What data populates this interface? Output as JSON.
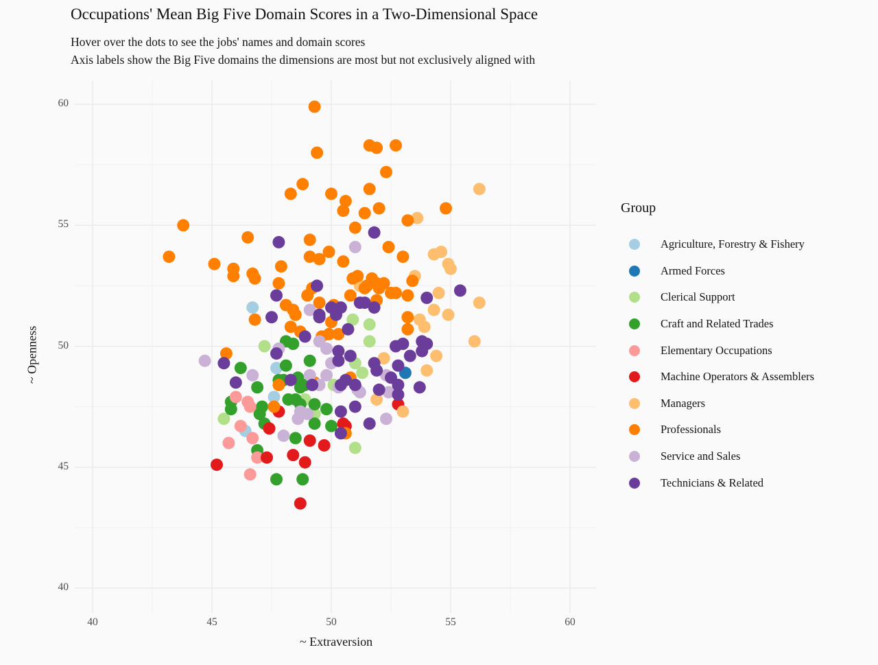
{
  "title": "Occupations' Mean Big Five Domain Scores in a Two-Dimensional Space",
  "subtitle_line1": "Hover over the dots to see the jobs' names and domain scores",
  "subtitle_line2": "Axis labels show the Big Five domains the dimensions are most but not exclusively aligned with",
  "chart_data": {
    "type": "scatter",
    "title": "Occupations' Mean Big Five Domain Scores in a Two-Dimensional Space",
    "xlabel": "~ Extraversion",
    "ylabel": "~ Openness",
    "xlim": [
      39.3,
      61.1
    ],
    "ylim": [
      39.0,
      61.0
    ],
    "xticks": [
      40,
      45,
      50,
      55,
      60
    ],
    "yticks": [
      40,
      45,
      50,
      55,
      60
    ],
    "minor_xticks": [
      42.5,
      47.5,
      52.5,
      57.5
    ],
    "minor_yticks": [
      42.5,
      47.5,
      52.5,
      57.5
    ],
    "grid": true,
    "legend_title": "Group",
    "legend_position": "right",
    "point_radius_px": 9,
    "groups": [
      {
        "name": "Agriculture, Forestry & Fishery",
        "color": "#a6cee3",
        "points": [
          [
            46.7,
            51.6
          ],
          [
            47.7,
            49.1
          ],
          [
            47.6,
            47.9
          ],
          [
            46.4,
            46.5
          ]
        ]
      },
      {
        "name": "Armed Forces",
        "color": "#1f78b4",
        "points": [
          [
            53.1,
            48.9
          ]
        ]
      },
      {
        "name": "Clerical Support",
        "color": "#b2df8a",
        "points": [
          [
            47.2,
            50.0
          ],
          [
            50.9,
            51.1
          ],
          [
            51.6,
            50.9
          ],
          [
            51.6,
            50.2
          ],
          [
            51.0,
            49.3
          ],
          [
            51.3,
            48.9
          ],
          [
            50.1,
            48.4
          ],
          [
            45.5,
            47.0
          ],
          [
            48.9,
            47.8
          ],
          [
            49.3,
            47.2
          ],
          [
            51.0,
            45.8
          ]
        ]
      },
      {
        "name": "Craft and Related Trades",
        "color": "#33a02c",
        "points": [
          [
            48.4,
            50.1
          ],
          [
            48.1,
            50.2
          ],
          [
            46.2,
            49.1
          ],
          [
            48.1,
            49.2
          ],
          [
            49.1,
            49.4
          ],
          [
            48.6,
            48.7
          ],
          [
            47.8,
            48.6
          ],
          [
            48.0,
            48.6
          ],
          [
            46.9,
            48.3
          ],
          [
            48.7,
            48.3
          ],
          [
            48.9,
            48.4
          ],
          [
            45.8,
            47.7
          ],
          [
            45.8,
            47.4
          ],
          [
            47.1,
            47.5
          ],
          [
            48.2,
            47.8
          ],
          [
            48.5,
            47.8
          ],
          [
            48.7,
            47.6
          ],
          [
            49.3,
            47.6
          ],
          [
            47.2,
            46.8
          ],
          [
            47.0,
            47.2
          ],
          [
            49.3,
            46.8
          ],
          [
            49.8,
            47.4
          ],
          [
            50.0,
            46.7
          ],
          [
            48.5,
            46.2
          ],
          [
            46.9,
            45.7
          ],
          [
            47.7,
            44.5
          ],
          [
            48.8,
            44.5
          ]
        ]
      },
      {
        "name": "Elementary Occupations",
        "color": "#fb9a99",
        "points": [
          [
            46.0,
            47.9
          ],
          [
            46.5,
            47.7
          ],
          [
            46.6,
            47.5
          ],
          [
            46.2,
            46.7
          ],
          [
            46.7,
            46.2
          ],
          [
            45.7,
            46.0
          ],
          [
            46.9,
            45.4
          ],
          [
            46.6,
            44.7
          ]
        ]
      },
      {
        "name": "Machine Operators & Assemblers",
        "color": "#e31a1c",
        "points": [
          [
            47.8,
            47.3
          ],
          [
            47.4,
            46.6
          ],
          [
            47.3,
            45.4
          ],
          [
            45.2,
            45.1
          ],
          [
            48.4,
            45.5
          ],
          [
            48.9,
            45.2
          ],
          [
            49.1,
            46.1
          ],
          [
            49.7,
            45.9
          ],
          [
            50.5,
            46.8
          ],
          [
            50.6,
            46.7
          ],
          [
            52.8,
            47.6
          ],
          [
            48.7,
            43.5
          ]
        ]
      },
      {
        "name": "Managers",
        "color": "#fdbf6f",
        "points": [
          [
            56.2,
            56.5
          ],
          [
            53.6,
            55.3
          ],
          [
            54.3,
            53.8
          ],
          [
            54.6,
            53.9
          ],
          [
            54.9,
            53.4
          ],
          [
            55.0,
            53.2
          ],
          [
            53.5,
            52.9
          ],
          [
            51.2,
            52.5
          ],
          [
            54.5,
            52.2
          ],
          [
            56.2,
            51.8
          ],
          [
            54.3,
            51.5
          ],
          [
            54.9,
            51.3
          ],
          [
            53.7,
            51.1
          ],
          [
            53.9,
            50.8
          ],
          [
            56.0,
            50.2
          ],
          [
            54.4,
            49.6
          ],
          [
            52.2,
            49.5
          ],
          [
            54.0,
            49.0
          ],
          [
            51.9,
            47.8
          ],
          [
            53.0,
            47.3
          ]
        ]
      },
      {
        "name": "Professionals",
        "color": "#ff7f00",
        "points": [
          [
            49.3,
            59.9
          ],
          [
            49.4,
            58.0
          ],
          [
            51.6,
            58.3
          ],
          [
            51.9,
            58.2
          ],
          [
            52.7,
            58.3
          ],
          [
            52.3,
            57.2
          ],
          [
            51.6,
            56.5
          ],
          [
            48.8,
            56.7
          ],
          [
            48.3,
            56.3
          ],
          [
            50.0,
            56.3
          ],
          [
            50.6,
            56.0
          ],
          [
            50.5,
            55.6
          ],
          [
            51.4,
            55.5
          ],
          [
            52.0,
            55.7
          ],
          [
            54.8,
            55.7
          ],
          [
            43.8,
            55.0
          ],
          [
            53.2,
            55.2
          ],
          [
            51.0,
            54.9
          ],
          [
            46.5,
            54.5
          ],
          [
            49.1,
            54.4
          ],
          [
            52.4,
            54.1
          ],
          [
            43.2,
            53.7
          ],
          [
            49.9,
            53.9
          ],
          [
            45.1,
            53.4
          ],
          [
            45.9,
            53.2
          ],
          [
            46.7,
            53.0
          ],
          [
            47.9,
            53.3
          ],
          [
            49.1,
            53.7
          ],
          [
            49.5,
            53.6
          ],
          [
            50.5,
            53.5
          ],
          [
            53.0,
            53.7
          ],
          [
            45.9,
            52.9
          ],
          [
            46.8,
            52.8
          ],
          [
            47.8,
            52.6
          ],
          [
            49.2,
            52.4
          ],
          [
            49.0,
            52.1
          ],
          [
            50.9,
            52.8
          ],
          [
            51.1,
            52.9
          ],
          [
            51.7,
            52.8
          ],
          [
            51.9,
            52.6
          ],
          [
            51.4,
            52.4
          ],
          [
            52.0,
            52.4
          ],
          [
            52.7,
            52.2
          ],
          [
            53.2,
            52.1
          ],
          [
            53.4,
            52.7
          ],
          [
            52.2,
            52.6
          ],
          [
            51.5,
            52.5
          ],
          [
            50.8,
            52.1
          ],
          [
            48.1,
            51.7
          ],
          [
            48.4,
            51.5
          ],
          [
            48.5,
            51.3
          ],
          [
            49.5,
            51.8
          ],
          [
            51.9,
            51.9
          ],
          [
            52.5,
            52.2
          ],
          [
            50.1,
            51.7
          ],
          [
            46.8,
            51.1
          ],
          [
            48.3,
            50.8
          ],
          [
            48.7,
            50.6
          ],
          [
            49.6,
            50.4
          ],
          [
            49.9,
            50.5
          ],
          [
            50.3,
            50.5
          ],
          [
            50.0,
            51.0
          ],
          [
            53.2,
            51.2
          ],
          [
            53.2,
            50.7
          ],
          [
            45.6,
            49.7
          ],
          [
            47.8,
            48.4
          ],
          [
            49.3,
            48.5
          ],
          [
            50.8,
            48.7
          ],
          [
            47.6,
            47.5
          ],
          [
            50.6,
            46.4
          ]
        ]
      },
      {
        "name": "Service and Sales",
        "color": "#cab2d6",
        "points": [
          [
            51.0,
            54.1
          ],
          [
            44.7,
            49.4
          ],
          [
            49.1,
            51.5
          ],
          [
            47.8,
            49.9
          ],
          [
            49.5,
            50.2
          ],
          [
            49.8,
            49.9
          ],
          [
            46.7,
            48.8
          ],
          [
            49.8,
            48.8
          ],
          [
            49.1,
            48.8
          ],
          [
            50.0,
            49.3
          ],
          [
            52.3,
            48.8
          ],
          [
            50.3,
            48.3
          ],
          [
            51.1,
            48.2
          ],
          [
            51.2,
            48.1
          ],
          [
            52.4,
            48.1
          ],
          [
            49.5,
            48.4
          ],
          [
            48.7,
            47.3
          ],
          [
            49.0,
            47.2
          ],
          [
            48.6,
            47.0
          ],
          [
            52.3,
            47.0
          ],
          [
            48.0,
            46.3
          ]
        ]
      },
      {
        "name": "Technicians & Related",
        "color": "#6a3d9a",
        "points": [
          [
            47.8,
            54.3
          ],
          [
            51.8,
            54.7
          ],
          [
            49.4,
            52.5
          ],
          [
            47.7,
            52.1
          ],
          [
            54.0,
            52.0
          ],
          [
            55.4,
            52.3
          ],
          [
            47.5,
            51.2
          ],
          [
            49.5,
            51.3
          ],
          [
            50.0,
            51.6
          ],
          [
            50.4,
            51.6
          ],
          [
            51.2,
            51.8
          ],
          [
            51.4,
            51.8
          ],
          [
            51.8,
            51.6
          ],
          [
            49.5,
            51.2
          ],
          [
            50.2,
            51.3
          ],
          [
            48.9,
            50.4
          ],
          [
            50.7,
            50.7
          ],
          [
            47.7,
            49.7
          ],
          [
            45.5,
            49.3
          ],
          [
            50.3,
            49.8
          ],
          [
            50.8,
            49.6
          ],
          [
            52.7,
            50.0
          ],
          [
            53.0,
            50.1
          ],
          [
            53.8,
            50.2
          ],
          [
            54.0,
            50.1
          ],
          [
            53.3,
            49.6
          ],
          [
            53.8,
            49.8
          ],
          [
            50.3,
            49.4
          ],
          [
            46.0,
            48.5
          ],
          [
            48.3,
            48.6
          ],
          [
            49.2,
            48.4
          ],
          [
            50.6,
            48.6
          ],
          [
            50.4,
            48.4
          ],
          [
            51.0,
            48.4
          ],
          [
            51.8,
            49.3
          ],
          [
            51.9,
            49.0
          ],
          [
            52.8,
            49.2
          ],
          [
            52.0,
            48.2
          ],
          [
            52.5,
            48.7
          ],
          [
            52.8,
            48.4
          ],
          [
            52.8,
            48.0
          ],
          [
            53.7,
            48.3
          ],
          [
            50.4,
            47.3
          ],
          [
            51.0,
            47.5
          ],
          [
            51.6,
            46.8
          ],
          [
            50.4,
            46.4
          ]
        ]
      }
    ]
  }
}
